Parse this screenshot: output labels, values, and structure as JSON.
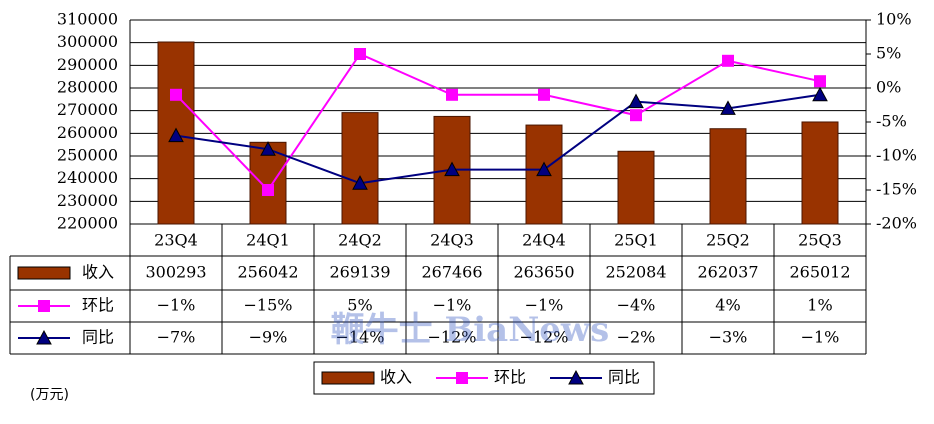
{
  "chart_data": {
    "type": "bar-line-table",
    "categories": [
      "23Q4",
      "24Q1",
      "24Q2",
      "24Q3",
      "24Q4",
      "25Q1",
      "25Q2",
      "25Q3"
    ],
    "series": [
      {
        "name": "收入",
        "type": "bar",
        "color": "#993300",
        "values": [
          300293,
          256042,
          269139,
          267466,
          263650,
          252084,
          262037,
          265012
        ]
      },
      {
        "name": "环比",
        "type": "line",
        "axis": "y2",
        "color": "#ff00ff",
        "marker": "square",
        "values": [
          -1,
          -15,
          5,
          -1,
          -1,
          -4,
          4,
          1
        ],
        "value_labels": [
          "−1%",
          "−15%",
          "5%",
          "−1%",
          "−1%",
          "−4%",
          "4%",
          "1%"
        ]
      },
      {
        "name": "同比",
        "type": "line",
        "axis": "y2",
        "color": "#000080",
        "marker": "triangle",
        "values": [
          -7,
          -9,
          -14,
          -12,
          -12,
          -2,
          -3,
          -1
        ],
        "value_labels": [
          "−7%",
          "−9%",
          "−14%",
          "−12%",
          "−12%",
          "−2%",
          "−3%",
          "−1%"
        ]
      }
    ],
    "ylim": [
      220000,
      310000
    ],
    "yticks": [
      220000,
      230000,
      240000,
      250000,
      260000,
      270000,
      280000,
      290000,
      300000,
      310000
    ],
    "y2lim": [
      -20,
      10
    ],
    "y2ticks": [
      {
        "value": -20,
        "label": "-20%"
      },
      {
        "value": -15,
        "label": "-15%"
      },
      {
        "value": -10,
        "label": "-10%"
      },
      {
        "value": -5,
        "label": "-5%"
      },
      {
        "value": 0,
        "label": "0%"
      },
      {
        "value": 5,
        "label": "5%"
      },
      {
        "value": 10,
        "label": "10%"
      }
    ],
    "grid": true,
    "unit_label": "(万元)",
    "watermark": "鞭牛士 BiaNews"
  }
}
